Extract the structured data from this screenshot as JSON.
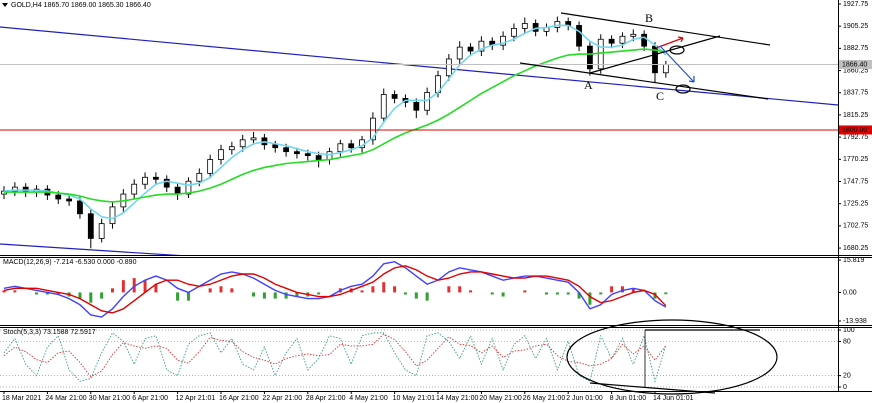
{
  "chart_data": [
    {
      "type": "candlestick",
      "title": "GOLD,H4  1865.70 1869.00 1865.30 1866.40",
      "categories": [
        "18 Mar 2021",
        null,
        null,
        null,
        "24 Mar 21:00",
        null,
        null,
        null,
        "30 Mar 21:00",
        null,
        null,
        null,
        "6 Apr 21:00",
        null,
        null,
        null,
        "12 Apr 21:01",
        null,
        null,
        null,
        "16 Apr 21:00",
        null,
        null,
        null,
        "22 Apr 21:00",
        null,
        null,
        null,
        "28 Apr 21:00",
        null,
        null,
        null,
        "4 May 21:00",
        null,
        null,
        null,
        "10 May 21:01",
        null,
        null,
        null,
        "14 May 21:00",
        null,
        null,
        null,
        "20 May 21:00",
        null,
        null,
        null,
        "26 May 21:00",
        null,
        null,
        null,
        "2 Jun 01:00",
        null,
        null,
        null,
        "8 Jun 01:00",
        null,
        null,
        null,
        "14 Jun 01:01",
        null
      ],
      "open": [
        1735,
        1738,
        1742,
        1737,
        1740,
        1734,
        1730,
        1728,
        1715,
        1690,
        1705,
        1722,
        1735,
        1745,
        1752,
        1750,
        1742,
        1735,
        1748,
        1756,
        1770,
        1780,
        1783,
        1790,
        1792,
        1785,
        1782,
        1778,
        1776,
        1774,
        1770,
        1778,
        1786,
        1782,
        1790,
        1812,
        1836,
        1832,
        1828,
        1820,
        1838,
        1855,
        1872,
        1884,
        1880,
        1890,
        1886,
        1895,
        1903,
        1908,
        1900,
        1904,
        1910,
        1906,
        1885,
        1862,
        1892,
        1888,
        1895,
        1897,
        1885,
        1858
      ],
      "high": [
        1743,
        1747,
        1746,
        1744,
        1744,
        1738,
        1734,
        1732,
        1719,
        1710,
        1727,
        1740,
        1750,
        1757,
        1757,
        1754,
        1746,
        1752,
        1761,
        1775,
        1785,
        1788,
        1795,
        1798,
        1796,
        1789,
        1786,
        1782,
        1780,
        1778,
        1782,
        1790,
        1790,
        1794,
        1818,
        1842,
        1840,
        1836,
        1832,
        1843,
        1860,
        1877,
        1890,
        1888,
        1895,
        1894,
        1900,
        1908,
        1914,
        1912,
        1908,
        1915,
        1914,
        1910,
        1889,
        1897,
        1896,
        1899,
        1902,
        1901,
        1889,
        1870
      ],
      "low": [
        1730,
        1733,
        1732,
        1732,
        1729,
        1725,
        1723,
        1710,
        1680,
        1686,
        1700,
        1717,
        1730,
        1740,
        1745,
        1737,
        1729,
        1731,
        1743,
        1751,
        1765,
        1775,
        1778,
        1785,
        1780,
        1777,
        1773,
        1771,
        1769,
        1762,
        1765,
        1773,
        1777,
        1777,
        1785,
        1807,
        1827,
        1823,
        1812,
        1815,
        1833,
        1850,
        1867,
        1875,
        1875,
        1881,
        1881,
        1890,
        1898,
        1895,
        1895,
        1899,
        1901,
        1880,
        1855,
        1857,
        1883,
        1883,
        1890,
        1880,
        1848,
        1853
      ],
      "close": [
        1738,
        1742,
        1737,
        1740,
        1734,
        1730,
        1728,
        1715,
        1690,
        1705,
        1722,
        1735,
        1745,
        1752,
        1750,
        1742,
        1735,
        1748,
        1756,
        1770,
        1780,
        1783,
        1790,
        1792,
        1785,
        1782,
        1778,
        1776,
        1774,
        1770,
        1778,
        1786,
        1782,
        1790,
        1812,
        1836,
        1832,
        1828,
        1820,
        1838,
        1855,
        1872,
        1884,
        1880,
        1890,
        1886,
        1895,
        1903,
        1908,
        1900,
        1904,
        1910,
        1906,
        1885,
        1862,
        1892,
        1888,
        1895,
        1897,
        1885,
        1858,
        1866.4
      ],
      "up_color": "#ffffff",
      "down_color": "#000000",
      "series": [
        {
          "color": "#6fd8f0",
          "values": [
            1738,
            1739,
            1739,
            1739,
            1738,
            1736,
            1734,
            1730,
            1720,
            1712,
            1710,
            1716,
            1726,
            1736,
            1745,
            1748,
            1746,
            1744,
            1746,
            1752,
            1762,
            1772,
            1780,
            1786,
            1788,
            1786,
            1784,
            1781,
            1778,
            1776,
            1775,
            1777,
            1780,
            1784,
            1792,
            1808,
            1822,
            1830,
            1830,
            1830,
            1838,
            1852,
            1866,
            1876,
            1882,
            1886,
            1888,
            1892,
            1898,
            1903,
            1904,
            1906,
            1906,
            1900,
            1890,
            1884,
            1884,
            1886,
            1892,
            1894,
            1886,
            1876
          ]
        },
        {
          "color": "#22dd22",
          "values": [
            1737,
            1737,
            1737,
            1737,
            1737,
            1736,
            1735,
            1733,
            1730,
            1728,
            1727,
            1728,
            1730,
            1732,
            1734,
            1735,
            1735,
            1736,
            1738,
            1741,
            1745,
            1750,
            1755,
            1759,
            1762,
            1764,
            1766,
            1767,
            1768,
            1769,
            1770,
            1772,
            1774,
            1776,
            1780,
            1786,
            1792,
            1797,
            1801,
            1805,
            1810,
            1816,
            1823,
            1830,
            1837,
            1843,
            1849,
            1855,
            1860,
            1865,
            1869,
            1873,
            1876,
            1877,
            1877,
            1878,
            1879,
            1880,
            1881,
            1882,
            1881,
            1879
          ]
        }
      ],
      "hlines": [
        {
          "value": 1800,
          "label": "1800.00",
          "color": "#e00000",
          "text_color": "#ffffff"
        },
        {
          "value": 1866.4,
          "label": "1866.40",
          "color": "#c0c0c0",
          "text_color": "#000000"
        }
      ],
      "annotations": [
        "A",
        "B",
        "C"
      ],
      "ylim": [
        1673.2,
        1931.8
      ],
      "yticks": [
        1927.75,
        1905.25,
        1882.75,
        1860.25,
        1837.75,
        1815.25,
        1792.75,
        1770.25,
        1747.75,
        1725.25,
        1702.75,
        1680.25
      ]
    },
    {
      "type": "macd",
      "title": "MACD(12,26,9) -7.214 -6.530 0.000 -0.890",
      "series": [
        {
          "style": "histogram",
          "color": "#e03030",
          "negative_color": "#30a030",
          "values": [
            1,
            1,
            0,
            -1,
            -1,
            -1,
            -2,
            -3,
            -5,
            -3,
            2,
            6,
            7,
            6,
            4,
            0,
            -4,
            -4,
            0,
            2,
            3,
            2,
            0,
            -2,
            -3,
            -3,
            -3,
            -2,
            -2,
            -1,
            0,
            2,
            2,
            1,
            3,
            5,
            3,
            -1,
            -3,
            -4,
            0,
            3,
            3,
            1,
            0,
            -1,
            -2,
            0,
            1,
            0,
            -1,
            -1,
            -1,
            -3,
            -6,
            -1,
            3,
            3,
            2,
            0,
            -3,
            -0.89
          ]
        },
        {
          "style": "line",
          "color": "#4040ff",
          "values": [
            2,
            3,
            2,
            1,
            0,
            -1,
            -3,
            -6,
            -11,
            -12,
            -8,
            -2,
            3,
            6,
            8,
            6,
            2,
            0,
            3,
            6,
            9,
            10,
            9,
            7,
            4,
            1,
            -1,
            -2,
            -3,
            -3,
            -2,
            1,
            3,
            4,
            8,
            14,
            15,
            12,
            8,
            4,
            6,
            10,
            12,
            11,
            10,
            8,
            6,
            7,
            8,
            8,
            7,
            6,
            5,
            0,
            -8,
            -6,
            -1,
            1,
            2,
            1,
            -4,
            -7.214
          ]
        },
        {
          "style": "line",
          "color": "#e00000",
          "values": [
            1,
            2,
            2,
            2,
            1,
            0,
            -1,
            -3,
            -6,
            -9,
            -10,
            -8,
            -4,
            0,
            4,
            6,
            6,
            4,
            3,
            4,
            6,
            8,
            9,
            9,
            7,
            4,
            2,
            0,
            -1,
            -2,
            -2,
            -1,
            1,
            3,
            5,
            9,
            12,
            13,
            11,
            8,
            6,
            7,
            9,
            10,
            10,
            9,
            8,
            7,
            7,
            8,
            8,
            7,
            6,
            3,
            -2,
            -5,
            -4,
            -2,
            0,
            1,
            -1,
            -6.53
          ]
        }
      ],
      "ylim": [
        -15.9,
        17.3
      ],
      "yticks": [
        15.819,
        {
          "value": 0,
          "label": "0.00"
        },
        -13.938
      ]
    },
    {
      "type": "stochastic",
      "title": "Stoch(5,3,3) 73.1588 72.5917",
      "series": [
        {
          "style": "dotted",
          "color": "#3a9a8a",
          "values": [
            60,
            85,
            40,
            20,
            70,
            90,
            30,
            10,
            15,
            60,
            95,
            80,
            40,
            85,
            90,
            30,
            20,
            75,
            90,
            95,
            60,
            85,
            40,
            30,
            70,
            20,
            60,
            85,
            30,
            50,
            90,
            85,
            40,
            90,
            95,
            95,
            60,
            30,
            20,
            90,
            95,
            80,
            50,
            90,
            40,
            85,
            30,
            75,
            90,
            50,
            85,
            30,
            80,
            20,
            10,
            90,
            50,
            85,
            40,
            90,
            10,
            73.1588
          ]
        },
        {
          "style": "dotted",
          "color": "#e03030",
          "values": [
            55,
            70,
            62,
            48,
            43,
            60,
            63,
            43,
            18,
            28,
            57,
            78,
            72,
            68,
            72,
            68,
            47,
            42,
            62,
            87,
            82,
            80,
            62,
            52,
            47,
            40,
            50,
            55,
            58,
            55,
            57,
            75,
            72,
            72,
            75,
            93,
            83,
            62,
            37,
            47,
            68,
            88,
            75,
            73,
            60,
            72,
            52,
            63,
            65,
            72,
            75,
            55,
            45,
            43,
            37,
            40,
            50,
            75,
            58,
            72,
            47,
            72.5917
          ]
        }
      ],
      "grid": true,
      "ylim": [
        -7,
        105.3
      ],
      "yticks": [
        100,
        80,
        20,
        0
      ]
    }
  ]
}
